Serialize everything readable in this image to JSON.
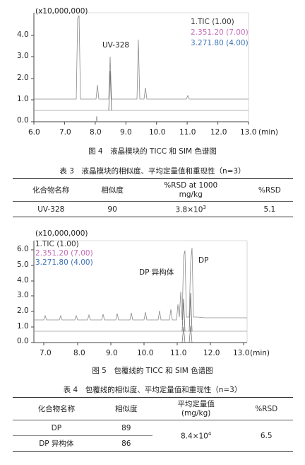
{
  "figure4": {
    "multiplier": "(x10,000,000)",
    "y_ticks": [
      "4.0",
      "3.0",
      "2.0",
      "1.0",
      "0.0"
    ],
    "x_ticks": [
      "6.0",
      "7.0",
      "8.0",
      "9.0",
      "10.0",
      "11.0",
      "12.0",
      "13.0"
    ],
    "x_unit": "(min)",
    "peak_label": "UV-328",
    "legend": [
      {
        "label": "1.TIC (1.00)",
        "color": "#333333"
      },
      {
        "label": "2.351.20 (7.00)",
        "color": "#c46bb8"
      },
      {
        "label": "3.271.80 (4.00)",
        "color": "#3d74b6"
      }
    ],
    "caption": "图 4　液晶模块的 TICC 和 SIM 色谱图"
  },
  "table3": {
    "title": "表 3　液晶模块的相似度、平均定量值和重现性（n=3）",
    "headers": [
      "化合物名称",
      "相似度",
      "%RSD at 1000",
      "mg/kg",
      "%RSD"
    ],
    "row": {
      "compound": "UV-328",
      "similarity": "90",
      "quant_base": "3.8×10",
      "quant_exp": "3",
      "rsd": "5.1"
    }
  },
  "figure5": {
    "multiplier": "(x10,000,000)",
    "y_ticks": [
      "6.0",
      "5.0",
      "4.0",
      "3.0",
      "2.0",
      "1.0",
      "0.0"
    ],
    "x_ticks": [
      "7.0",
      "8.0",
      "9.0",
      "10.0",
      "11.0",
      "12.0",
      "13.0"
    ],
    "x_unit": "(min)",
    "peak_label_1": "DP 异构体",
    "peak_label_2": "DP",
    "legend": [
      {
        "label": "1.TIC (1.00)",
        "color": "#333333"
      },
      {
        "label": "2.351.20 (7.00)",
        "color": "#c46bb8"
      },
      {
        "label": "3.271.80 (4.00)",
        "color": "#3d74b6"
      }
    ],
    "caption": "图 5　包覆线的 TICC 和 SIM 色谱图"
  },
  "table4": {
    "title": "表 4　包覆线的相似度、平均定量值和重现性（n=3）",
    "headers": [
      "化合物名称",
      "相似度",
      "平均定量值",
      "(mg/kg)",
      "%RSD"
    ],
    "rows": [
      {
        "compound": "DP",
        "similarity": "89"
      },
      {
        "compound": "DP 异构体",
        "similarity": "86"
      }
    ],
    "quant_base": "8.4×10",
    "quant_exp": "4",
    "rsd": "6.5"
  }
}
